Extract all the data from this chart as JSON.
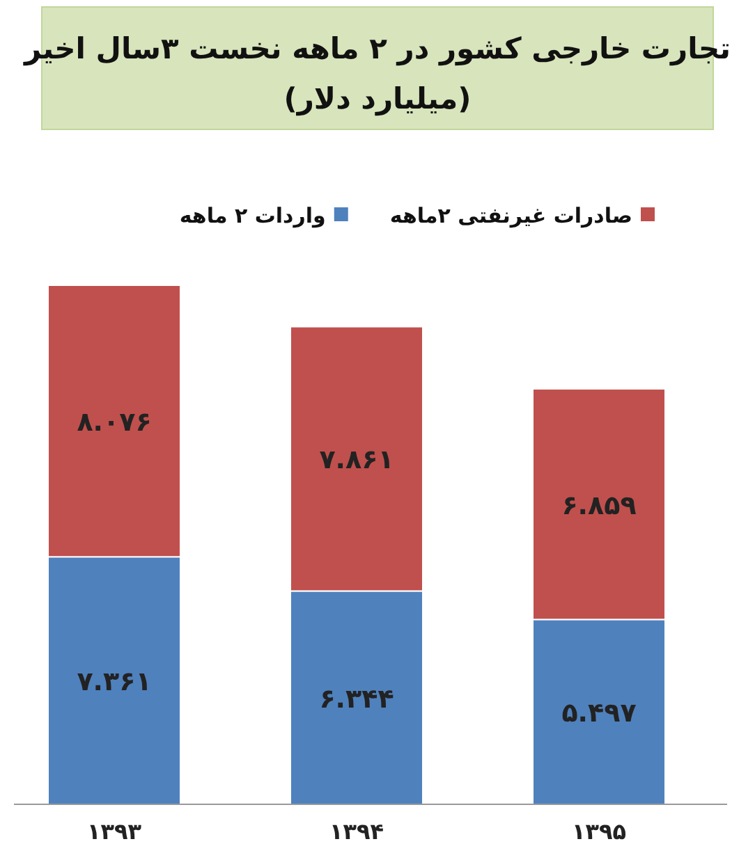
{
  "chart_data": {
    "type": "bar",
    "title": "تجارت خارجی کشور در ۲ ماهه نخست ۳سال اخیر",
    "subtitle": "(میلیارد دلار)",
    "categories": [
      "۱۳۹۳",
      "۱۳۹۴",
      "۱۳۹۵"
    ],
    "stacked": true,
    "legend": "top",
    "series": [
      {
        "name": "واردات ۲ ماهه",
        "color": "#4f81bd",
        "values": [
          7.361,
          6.344,
          5.497
        ],
        "value_labels": [
          "۷.۳۶۱",
          "۶.۳۴۴",
          "۵.۴۹۷"
        ]
      },
      {
        "name": "صادرات غیرنفتی ۲ماهه",
        "color": "#c0504d",
        "values": [
          8.076,
          7.861,
          6.859
        ],
        "value_labels": [
          "۸.۰۷۶",
          "۷.۸۶۱",
          "۶.۸۵۹"
        ]
      }
    ]
  }
}
